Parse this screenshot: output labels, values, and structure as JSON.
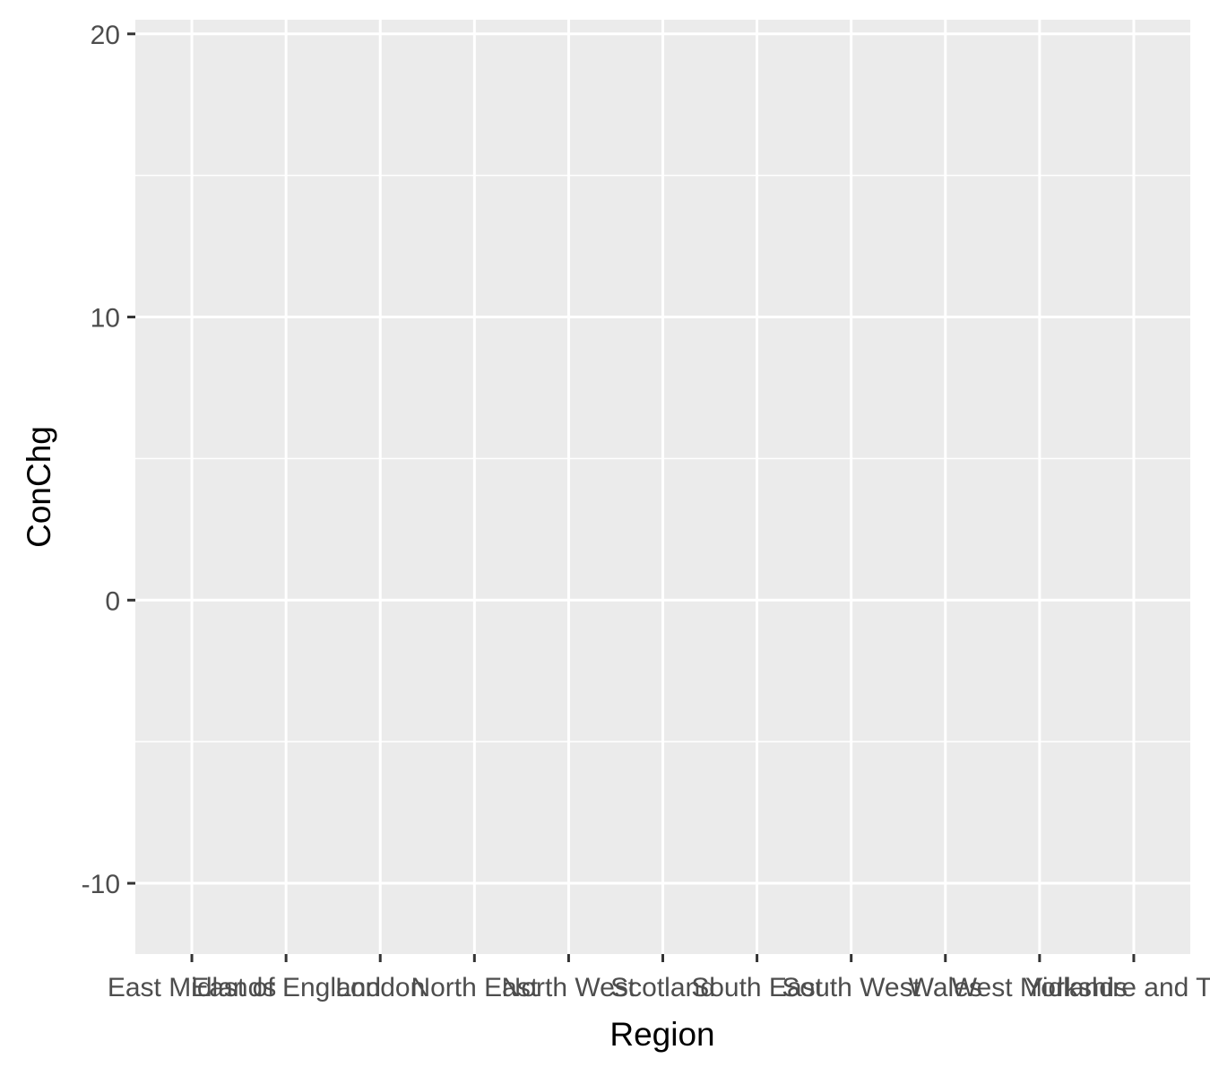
{
  "chart_data": {
    "type": "scatter",
    "title": "",
    "xlabel": "Region",
    "ylabel": "ConChg",
    "categories": [
      "East Midlands",
      "East of England",
      "London",
      "North East",
      "North West",
      "Scotland",
      "South East",
      "South West",
      "Wales",
      "West Midlands",
      "Yorkshire and The"
    ],
    "y_ticks": [
      -10,
      0,
      10,
      20
    ],
    "y_tick_labels": [
      "-10",
      "0",
      "10",
      "20"
    ],
    "ylim": [
      -12.5,
      20.5
    ],
    "grid": true,
    "legend": "none",
    "series": [],
    "colors": {
      "panel": "#ebebeb",
      "grid": "#ffffff",
      "tick": "#333333",
      "tick_label": "#4d4d4d",
      "title": "#000000"
    }
  }
}
